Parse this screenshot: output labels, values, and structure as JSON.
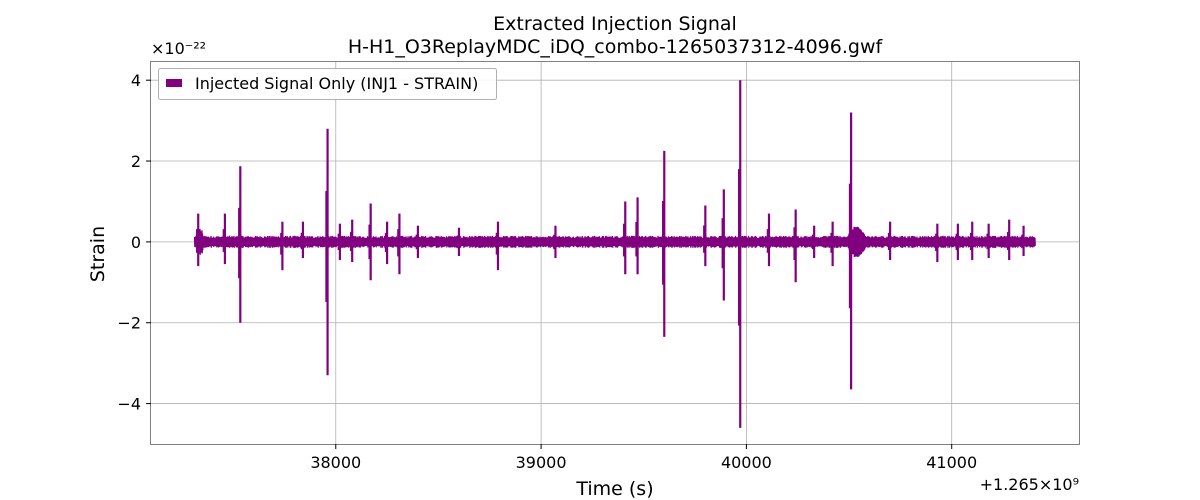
{
  "chart_data": {
    "type": "line",
    "title": "Extracted Injection Signal",
    "subtitle": "H-H1_O3ReplayMDC_iDQ_combo-1265037312-4096.gwf",
    "xlabel": "Time (s)",
    "ylabel": "Strain",
    "x_offset_label": "+1.265×10⁹",
    "y_multiplier_label": "×10⁻²²",
    "x_range": [
      37100,
      41620
    ],
    "y_range": [
      -5.0,
      4.45
    ],
    "x_ticks": [
      38000,
      39000,
      40000,
      41000
    ],
    "x_tick_labels": [
      "38000",
      "39000",
      "40000",
      "41000"
    ],
    "y_ticks": [
      -4,
      -2,
      0,
      2,
      4
    ],
    "y_tick_labels": [
      "−4",
      "−2",
      "0",
      "2",
      "4"
    ],
    "grid": true,
    "legend": {
      "position": "top-left",
      "entries": [
        "Injected Signal Only (INJ1 - STRAIN)"
      ]
    },
    "series": [
      {
        "name": "Injected Signal Only (INJ1 - STRAIN)",
        "color": "#800080",
        "x_start": 37312,
        "x_end": 41408,
        "baseline_amplitude": 0.15,
        "spikes": [
          {
            "x": 37330,
            "max": 0.7,
            "min": -0.6
          },
          {
            "x": 37460,
            "max": 0.7,
            "min": -0.55
          },
          {
            "x": 37535,
            "max": 1.87,
            "min": -2.0
          },
          {
            "x": 37740,
            "max": 0.5,
            "min": -0.7
          },
          {
            "x": 37840,
            "max": 0.5,
            "min": -0.4
          },
          {
            "x": 37960,
            "max": 2.8,
            "min": -3.3
          },
          {
            "x": 38020,
            "max": 0.45,
            "min": -0.45
          },
          {
            "x": 38080,
            "max": 0.55,
            "min": -0.5
          },
          {
            "x": 38170,
            "max": 0.95,
            "min": -0.95
          },
          {
            "x": 38250,
            "max": 0.5,
            "min": -0.55
          },
          {
            "x": 38310,
            "max": 0.7,
            "min": -0.8
          },
          {
            "x": 38400,
            "max": 0.4,
            "min": -0.4
          },
          {
            "x": 38600,
            "max": 0.35,
            "min": -0.35
          },
          {
            "x": 38790,
            "max": 0.5,
            "min": -0.7
          },
          {
            "x": 39070,
            "max": 0.4,
            "min": -0.4
          },
          {
            "x": 39410,
            "max": 1.0,
            "min": -0.8
          },
          {
            "x": 39470,
            "max": 1.1,
            "min": -0.8
          },
          {
            "x": 39600,
            "max": 2.25,
            "min": -2.35
          },
          {
            "x": 39800,
            "max": 0.9,
            "min": -0.6
          },
          {
            "x": 39890,
            "max": 1.3,
            "min": -1.45
          },
          {
            "x": 39970,
            "max": 4.0,
            "min": -4.6
          },
          {
            "x": 40110,
            "max": 0.7,
            "min": -0.6
          },
          {
            "x": 40240,
            "max": 0.8,
            "min": -1.0
          },
          {
            "x": 40330,
            "max": 0.4,
            "min": -0.4
          },
          {
            "x": 40420,
            "max": 0.5,
            "min": -0.6
          },
          {
            "x": 40510,
            "max": 3.2,
            "min": -3.65
          },
          {
            "x": 40700,
            "max": 0.5,
            "min": -0.45
          },
          {
            "x": 40930,
            "max": 0.45,
            "min": -0.5
          },
          {
            "x": 41030,
            "max": 0.45,
            "min": -0.45
          },
          {
            "x": 41100,
            "max": 0.5,
            "min": -0.45
          },
          {
            "x": 41180,
            "max": 0.45,
            "min": -0.4
          },
          {
            "x": 41280,
            "max": 0.55,
            "min": -0.45
          },
          {
            "x": 41350,
            "max": 0.4,
            "min": -0.35
          }
        ],
        "chirp_regions": [
          {
            "x_start": 40480,
            "x_end": 40640,
            "amplitude": 0.4
          },
          {
            "x_start": 37320,
            "x_end": 37380,
            "amplitude": 0.35
          }
        ]
      }
    ]
  }
}
